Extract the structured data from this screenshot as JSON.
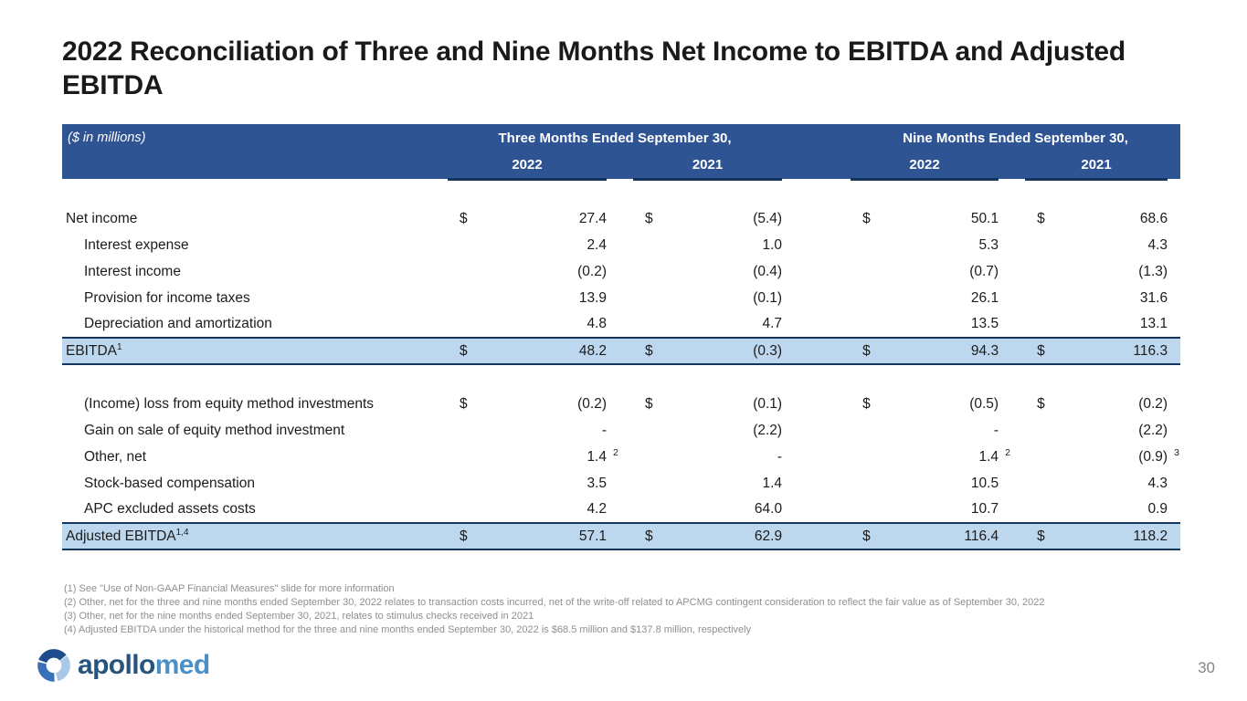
{
  "slide": {
    "title": "2022 Reconciliation of Three and Nine Months Net Income to EBITDA and Adjusted EBITDA",
    "page_number": "30"
  },
  "logo": {
    "icon": "apollomed-swirl-logo-icon",
    "brand_part_1": "apollo",
    "brand_part_2": "med"
  },
  "colors": {
    "header_blue": "#2F5494",
    "highlight_blue": "#BDD7EE",
    "border_navy": "#14365C",
    "logo_dark_blue": "#26547F",
    "logo_light_blue": "#4C8FC7",
    "footnote_gray": "#8f8f8f"
  },
  "table": {
    "unit_label": "($ in millions)",
    "col_groups": [
      {
        "label": "Three Months Ended September 30,",
        "years": [
          "2022",
          "2021"
        ]
      },
      {
        "label": "Nine Months Ended September 30,",
        "years": [
          "2022",
          "2021"
        ]
      }
    ],
    "sections": [
      {
        "rows": [
          {
            "label": "Net income",
            "indent": false,
            "cells": [
              {
                "d": "$",
                "v": "27.4"
              },
              {
                "d": "$",
                "v": "(5.4)"
              },
              {
                "d": "$",
                "v": "50.1"
              },
              {
                "d": "$",
                "v": "68.6"
              }
            ]
          },
          {
            "label": "Interest expense",
            "indent": true,
            "cells": [
              {
                "v": "2.4"
              },
              {
                "v": "1.0"
              },
              {
                "v": "5.3"
              },
              {
                "v": "4.3"
              }
            ]
          },
          {
            "label": "Interest income",
            "indent": true,
            "cells": [
              {
                "v": "(0.2)"
              },
              {
                "v": "(0.4)"
              },
              {
                "v": "(0.7)"
              },
              {
                "v": "(1.3)"
              }
            ]
          },
          {
            "label": "Provision for income taxes",
            "indent": true,
            "cells": [
              {
                "v": "13.9"
              },
              {
                "v": "(0.1)"
              },
              {
                "v": "26.1"
              },
              {
                "v": "31.6"
              }
            ]
          },
          {
            "label": "Depreciation and amortization",
            "indent": true,
            "cells": [
              {
                "v": "4.8"
              },
              {
                "v": "4.7"
              },
              {
                "v": "13.5"
              },
              {
                "v": "13.1"
              }
            ]
          }
        ],
        "total": {
          "label": "EBITDA",
          "sup": "1",
          "indent": false,
          "cells": [
            {
              "d": "$",
              "v": "48.2"
            },
            {
              "d": "$",
              "v": "(0.3)"
            },
            {
              "d": "$",
              "v": "94.3"
            },
            {
              "d": "$",
              "v": "116.3"
            }
          ]
        }
      },
      {
        "rows": [
          {
            "label": "(Income) loss from equity method investments",
            "indent": true,
            "cells": [
              {
                "d": "$",
                "v": "(0.2)"
              },
              {
                "d": "$",
                "v": "(0.1)"
              },
              {
                "d": "$",
                "v": "(0.5)"
              },
              {
                "d": "$",
                "v": "(0.2)"
              }
            ]
          },
          {
            "label": "Gain on sale of equity method investment",
            "indent": true,
            "cells": [
              {
                "v": "-"
              },
              {
                "v": "(2.2)"
              },
              {
                "v": "-"
              },
              {
                "v": "(2.2)"
              }
            ]
          },
          {
            "label": "Other, net",
            "indent": true,
            "cells": [
              {
                "v": "1.4",
                "sup": "2"
              },
              {
                "v": "-"
              },
              {
                "v": "1.4",
                "sup": "2"
              },
              {
                "v": "(0.9)",
                "sup": "3"
              }
            ]
          },
          {
            "label": "Stock-based compensation",
            "indent": true,
            "cells": [
              {
                "v": "3.5"
              },
              {
                "v": "1.4"
              },
              {
                "v": "10.5"
              },
              {
                "v": "4.3"
              }
            ]
          },
          {
            "label": "APC excluded assets costs",
            "indent": true,
            "cells": [
              {
                "v": "4.2"
              },
              {
                "v": "64.0"
              },
              {
                "v": "10.7"
              },
              {
                "v": "0.9"
              }
            ]
          }
        ],
        "total": {
          "label": "Adjusted EBITDA",
          "sup": "1,4",
          "indent": false,
          "cells": [
            {
              "d": "$",
              "v": "57.1"
            },
            {
              "d": "$",
              "v": "62.9"
            },
            {
              "d": "$",
              "v": "116.4"
            },
            {
              "d": "$",
              "v": "118.2"
            }
          ]
        }
      }
    ]
  },
  "footnotes": [
    "(1) See \"Use of Non-GAAP Financial Measures\" slide for more information",
    "(2) Other, net for the three and nine months ended September 30, 2022 relates to transaction costs incurred, net of the write-off related to APCMG contingent consideration to reflect the fair value as of September 30, 2022",
    "(3) Other, net for the nine months ended September 30, 2021, relates to stimulus checks received in 2021",
    "(4) Adjusted EBITDA under the historical method for the three and nine months ended September 30, 2022 is $68.5 million and $137.8 million, respectively"
  ]
}
